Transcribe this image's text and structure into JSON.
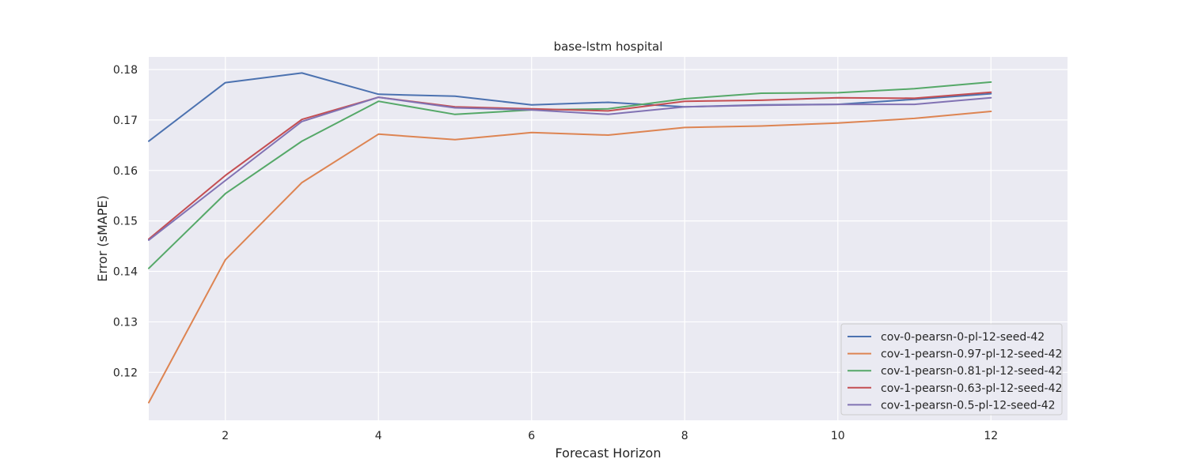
{
  "chart_data": {
    "type": "line",
    "title": "base-lstm hospital",
    "xlabel": "Forecast Horizon",
    "ylabel": "Error (sMAPE)",
    "xlim": [
      1,
      13
    ],
    "ylim": [
      0.1105,
      0.1825
    ],
    "xticks": [
      "2",
      "4",
      "6",
      "8",
      "10",
      "12"
    ],
    "yticks": [
      "0.12",
      "0.13",
      "0.14",
      "0.15",
      "0.16",
      "0.17",
      "0.18"
    ],
    "grid": true,
    "legend_position": "lower-right",
    "x": [
      1,
      2,
      3,
      4,
      5,
      6,
      7,
      8,
      9,
      10,
      11,
      12
    ],
    "series": [
      {
        "name": "cov-0-pearsn-0-pl-12-seed-42",
        "color": "#4c72b0",
        "values": [
          0.1658,
          0.1774,
          0.1793,
          0.1751,
          0.1747,
          0.173,
          0.1735,
          0.1726,
          0.173,
          0.1731,
          0.1741,
          0.1752
        ]
      },
      {
        "name": "cov-1-pearsn-0.97-pl-12-seed-42",
        "color": "#dd8452",
        "values": [
          0.114,
          0.1423,
          0.1576,
          0.1672,
          0.1661,
          0.1675,
          0.167,
          0.1685,
          0.1688,
          0.1694,
          0.1703,
          0.1717
        ]
      },
      {
        "name": "cov-1-pearsn-0.81-pl-12-seed-42",
        "color": "#55a868",
        "values": [
          0.1406,
          0.1554,
          0.1658,
          0.1737,
          0.1711,
          0.172,
          0.1722,
          0.1742,
          0.1753,
          0.1754,
          0.1762,
          0.1775
        ]
      },
      {
        "name": "cov-1-pearsn-0.63-pl-12-seed-42",
        "color": "#c44e52",
        "values": [
          0.1464,
          0.159,
          0.1701,
          0.1745,
          0.1726,
          0.1722,
          0.1718,
          0.1737,
          0.1739,
          0.1744,
          0.1743,
          0.1755
        ]
      },
      {
        "name": "cov-1-pearsn-0.5-pl-12-seed-42",
        "color": "#8172b3",
        "values": [
          0.1462,
          0.158,
          0.1697,
          0.1745,
          0.1724,
          0.172,
          0.1711,
          0.1726,
          0.1729,
          0.1731,
          0.1731,
          0.1744
        ]
      }
    ]
  }
}
